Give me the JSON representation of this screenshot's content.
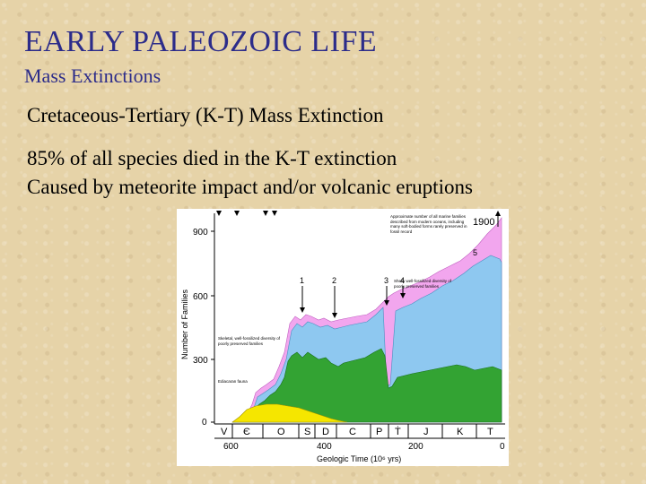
{
  "slide": {
    "title": "EARLY PALEOZOIC LIFE",
    "subtitle": "Mass Extinctions",
    "heading": "Cretaceous-Tertiary (K-T) Mass Extinction",
    "bullet1": "85% of all species died in the K-T extinction",
    "bullet2": "Caused by meteorite impact and/or volcanic eruptions"
  },
  "figure": {
    "y_axis_label": "Number of Families",
    "x_axis_label": "Geologic Time (10⁶ yrs)",
    "y_ticks": [
      "900",
      "600",
      "300",
      "0"
    ],
    "x_ticks": [
      "600",
      "400",
      "200",
      "0"
    ],
    "periods": [
      "V",
      "Є",
      "O",
      "S",
      "D",
      "C",
      "P",
      "Ṫ",
      "J",
      "K",
      "T"
    ],
    "extinction_markers": [
      "1",
      "2",
      "3",
      "4",
      "5"
    ],
    "corner_label": "1900",
    "annotation_top": "Approximate number of all marine families described from modern oceans, including many soft-bodied forms rarely preserved in fossil record",
    "annotation_shelly": "Shelly well-fossilized diversity of poorly preserved families",
    "annotation_skeletal": "Skeletal, well-fossilized diversity of poorly preserved families",
    "annotation_ediacara": "Ediacaran fauna",
    "colors": {
      "soft": "#f2a6ee",
      "poor": "#8ec8f0",
      "skeletal": "#33a333",
      "cambrian": "#f5e600"
    }
  }
}
